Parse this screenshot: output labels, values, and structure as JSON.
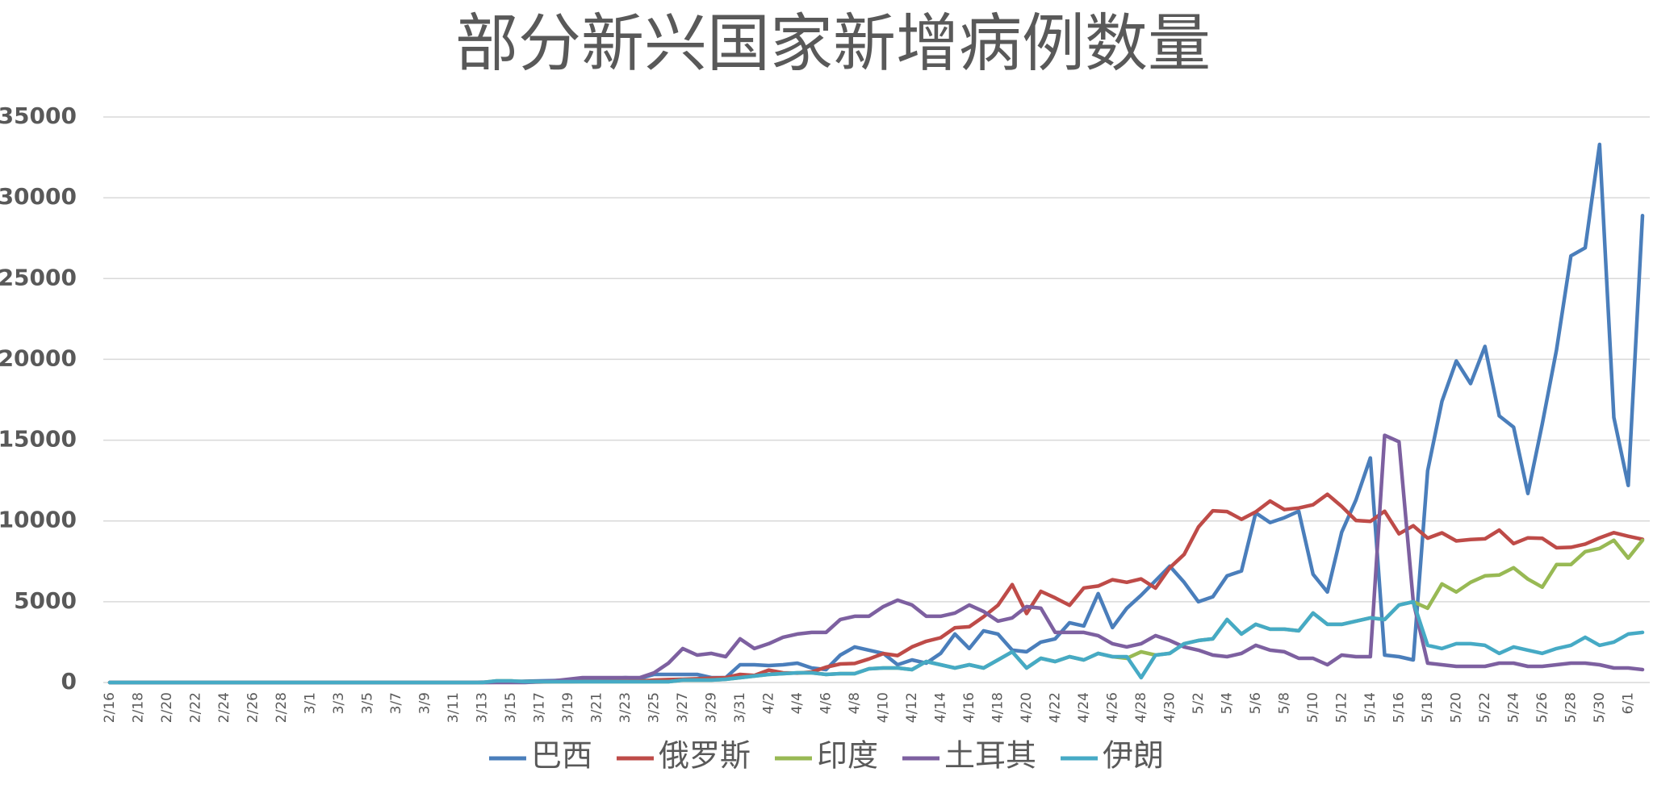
{
  "chart_data": {
    "type": "line",
    "title": "部分新兴国家新增病例数量",
    "categories": [
      "2/16",
      null,
      "2/18",
      null,
      "2/20",
      null,
      "2/22",
      null,
      "2/24",
      null,
      "2/26",
      null,
      "2/28",
      null,
      "3/1",
      null,
      "3/3",
      null,
      "3/5",
      null,
      "3/7",
      null,
      "3/9",
      null,
      "3/11",
      null,
      "3/13",
      null,
      "3/15",
      null,
      "3/17",
      null,
      "3/19",
      null,
      "3/21",
      null,
      "3/23",
      null,
      "3/25",
      null,
      "3/27",
      null,
      "3/29",
      null,
      "3/31",
      null,
      "4/2",
      null,
      "4/4",
      null,
      "4/6",
      null,
      "4/8",
      null,
      "4/10",
      null,
      "4/12",
      null,
      "4/14",
      null,
      "4/16",
      null,
      "4/18",
      null,
      "4/20",
      null,
      "4/22",
      null,
      "4/24",
      null,
      "4/26",
      null,
      "4/28",
      null,
      "4/30",
      null,
      "5/2",
      null,
      "5/4",
      null,
      "5/6",
      null,
      "5/8",
      null,
      "5/10",
      null,
      "5/12",
      null,
      "5/14",
      null,
      "5/16",
      null,
      "5/18",
      null,
      "5/20",
      null,
      "5/22",
      null,
      "5/24",
      null,
      "5/26",
      null,
      "5/28",
      null,
      "5/30",
      null,
      "6/1",
      null
    ],
    "series": [
      {
        "name": "巴西",
        "color": "#4a7ebb",
        "values": [
          0,
          0,
          0,
          0,
          0,
          0,
          0,
          0,
          0,
          0,
          0,
          0,
          0,
          0,
          0,
          0,
          0,
          0,
          0,
          0,
          0,
          0,
          0,
          0,
          0,
          0,
          20,
          30,
          50,
          80,
          100,
          120,
          150,
          200,
          220,
          250,
          300,
          250,
          500,
          500,
          500,
          500,
          300,
          300,
          1100,
          1100,
          1050,
          1100,
          1200,
          900,
          800,
          1700,
          2200,
          2000,
          1800,
          1100,
          1400,
          1200,
          1800,
          3000,
          2100,
          3200,
          3000,
          2000,
          1900,
          2500,
          2700,
          3700,
          3500,
          5500,
          3400,
          4600,
          5400,
          6300,
          7200,
          6200,
          5000,
          5300,
          6600,
          6900,
          10500,
          9900,
          10200,
          10600,
          6700,
          5600,
          9300,
          11300,
          13900,
          1700,
          1600,
          1400,
          13100,
          17400,
          19900,
          18500,
          20800,
          16500,
          15800,
          11700,
          16000,
          20600,
          26400,
          26900,
          33300,
          16400,
          12200,
          28900
        ]
      },
      {
        "name": "俄罗斯",
        "color": "#be4b48",
        "values": [
          0,
          0,
          0,
          0,
          0,
          0,
          0,
          0,
          0,
          0,
          0,
          0,
          0,
          0,
          0,
          0,
          0,
          0,
          0,
          0,
          0,
          0,
          0,
          0,
          0,
          0,
          0,
          10,
          20,
          20,
          30,
          50,
          50,
          60,
          60,
          70,
          80,
          90,
          150,
          180,
          200,
          230,
          270,
          300,
          500,
          440,
          770,
          600,
          580,
          650,
          950,
          1150,
          1180,
          1460,
          1790,
          1670,
          2200,
          2550,
          2770,
          3390,
          3450,
          4070,
          4780,
          6060,
          4270,
          5640,
          5240,
          4780,
          5850,
          5970,
          6360,
          6200,
          6410,
          5840,
          7100,
          7930,
          9620,
          10630,
          10580,
          10100,
          10560,
          11230,
          10700,
          10800,
          11000,
          11650,
          10900,
          10030,
          9970,
          10600,
          9200,
          9700,
          8930,
          9260,
          8760,
          8850,
          8890,
          9430,
          8600,
          8950,
          8920,
          8340,
          8370,
          8570,
          8950,
          9270,
          9050,
          8860
        ]
      },
      {
        "name": "印度",
        "color": "#98b954",
        "values": [
          0,
          0,
          0,
          0,
          0,
          0,
          0,
          0,
          0,
          0,
          0,
          0,
          0,
          0,
          0,
          0,
          0,
          0,
          0,
          0,
          0,
          0,
          0,
          0,
          0,
          0,
          0,
          100,
          100,
          50,
          50,
          50,
          50,
          50,
          50,
          50,
          50,
          50,
          50,
          50,
          150,
          150,
          150,
          200,
          300,
          400,
          500,
          550,
          600,
          600,
          500,
          550,
          550,
          850,
          900,
          900,
          800,
          1300,
          1100,
          900,
          1100,
          900,
          1400,
          1900,
          900,
          1500,
          1300,
          1600,
          1400,
          1800,
          1600,
          1500,
          1900,
          1700,
          1800,
          2400,
          2600,
          2700,
          3900,
          3000,
          3600,
          3300,
          3300,
          3200,
          4300,
          3600,
          3600,
          3800,
          4000,
          3900,
          4800,
          5000,
          4600,
          6100,
          5600,
          6200,
          6600,
          6650,
          7100,
          6400,
          5900,
          7300,
          7300,
          8100,
          8300,
          8800,
          7700,
          8800
        ]
      },
      {
        "name": "土耳其",
        "color": "#7d60a0",
        "values": [
          0,
          0,
          0,
          0,
          0,
          0,
          0,
          0,
          0,
          0,
          0,
          0,
          0,
          0,
          0,
          0,
          0,
          0,
          0,
          0,
          0,
          0,
          0,
          0,
          0,
          0,
          0,
          0,
          0,
          0,
          50,
          100,
          200,
          300,
          300,
          300,
          300,
          300,
          600,
          1200,
          2100,
          1700,
          1800,
          1600,
          2700,
          2100,
          2400,
          2800,
          3000,
          3100,
          3100,
          3900,
          4100,
          4100,
          4700,
          5100,
          4800,
          4100,
          4100,
          4300,
          4800,
          4400,
          3800,
          4000,
          4700,
          4600,
          3100,
          3100,
          3100,
          2900,
          2400,
          2200,
          2400,
          2900,
          2600,
          2200,
          2000,
          1700,
          1600,
          1800,
          2300,
          2000,
          1900,
          1500,
          1500,
          1100,
          1700,
          1600,
          1600,
          15300,
          14900,
          5000,
          1200,
          1100,
          1000,
          1000,
          1000,
          1200,
          1200,
          1000,
          1000,
          1100,
          1200,
          1200,
          1100,
          900,
          900,
          800
        ]
      },
      {
        "name": "伊朗",
        "color": "#46aac5",
        "values": [
          0,
          0,
          0,
          0,
          0,
          0,
          0,
          0,
          0,
          0,
          0,
          0,
          0,
          0,
          0,
          0,
          0,
          0,
          0,
          0,
          0,
          0,
          0,
          0,
          0,
          0,
          0,
          100,
          100,
          50,
          50,
          50,
          50,
          50,
          50,
          50,
          50,
          50,
          50,
          50,
          150,
          150,
          150,
          200,
          300,
          400,
          500,
          550,
          600,
          600,
          500,
          550,
          550,
          850,
          900,
          900,
          800,
          1300,
          1100,
          900,
          1100,
          900,
          1400,
          1900,
          900,
          1500,
          1300,
          1600,
          1400,
          1800,
          1600,
          1600,
          300,
          1700,
          1800,
          2400,
          2600,
          2700,
          3900,
          3000,
          3600,
          3300,
          3300,
          3200,
          4300,
          3600,
          3600,
          3800,
          4000,
          3900,
          4800,
          5000,
          2300,
          2100,
          2400,
          2400,
          2300,
          1800,
          2200,
          2000,
          1800,
          2100,
          2300,
          2800,
          2300,
          2500,
          3000,
          3100
        ]
      }
    ],
    "ylim": [
      0,
      35000
    ],
    "yticks": [
      0,
      5000,
      10000,
      15000,
      20000,
      25000,
      30000,
      35000
    ],
    "grid": true,
    "legend": "bottom"
  }
}
